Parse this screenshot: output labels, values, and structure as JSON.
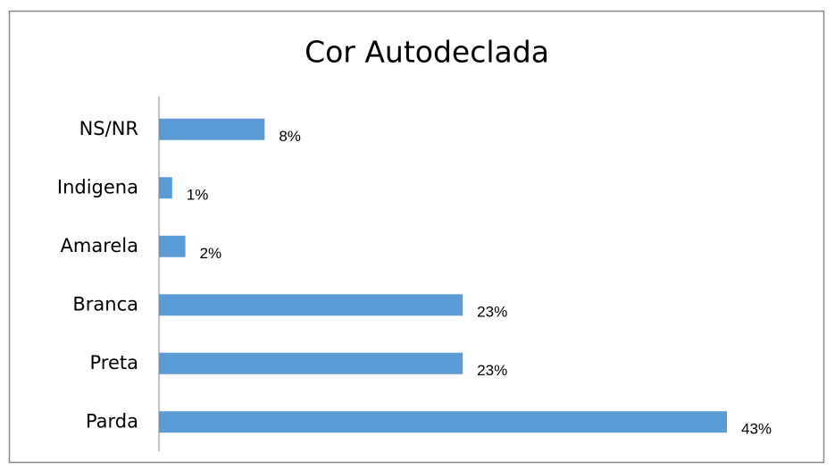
{
  "chart_data": {
    "type": "bar",
    "orientation": "horizontal",
    "title": "Cor Autodeclada",
    "categories": [
      "NS/NR",
      "Indigena",
      "Amarela",
      "Branca",
      "Preta",
      "Parda"
    ],
    "values": [
      8,
      1,
      2,
      23,
      23,
      43
    ],
    "value_labels": [
      "8%",
      "1%",
      "2%",
      "23%",
      "23%",
      "43%"
    ],
    "color": "#5b9bd5"
  }
}
